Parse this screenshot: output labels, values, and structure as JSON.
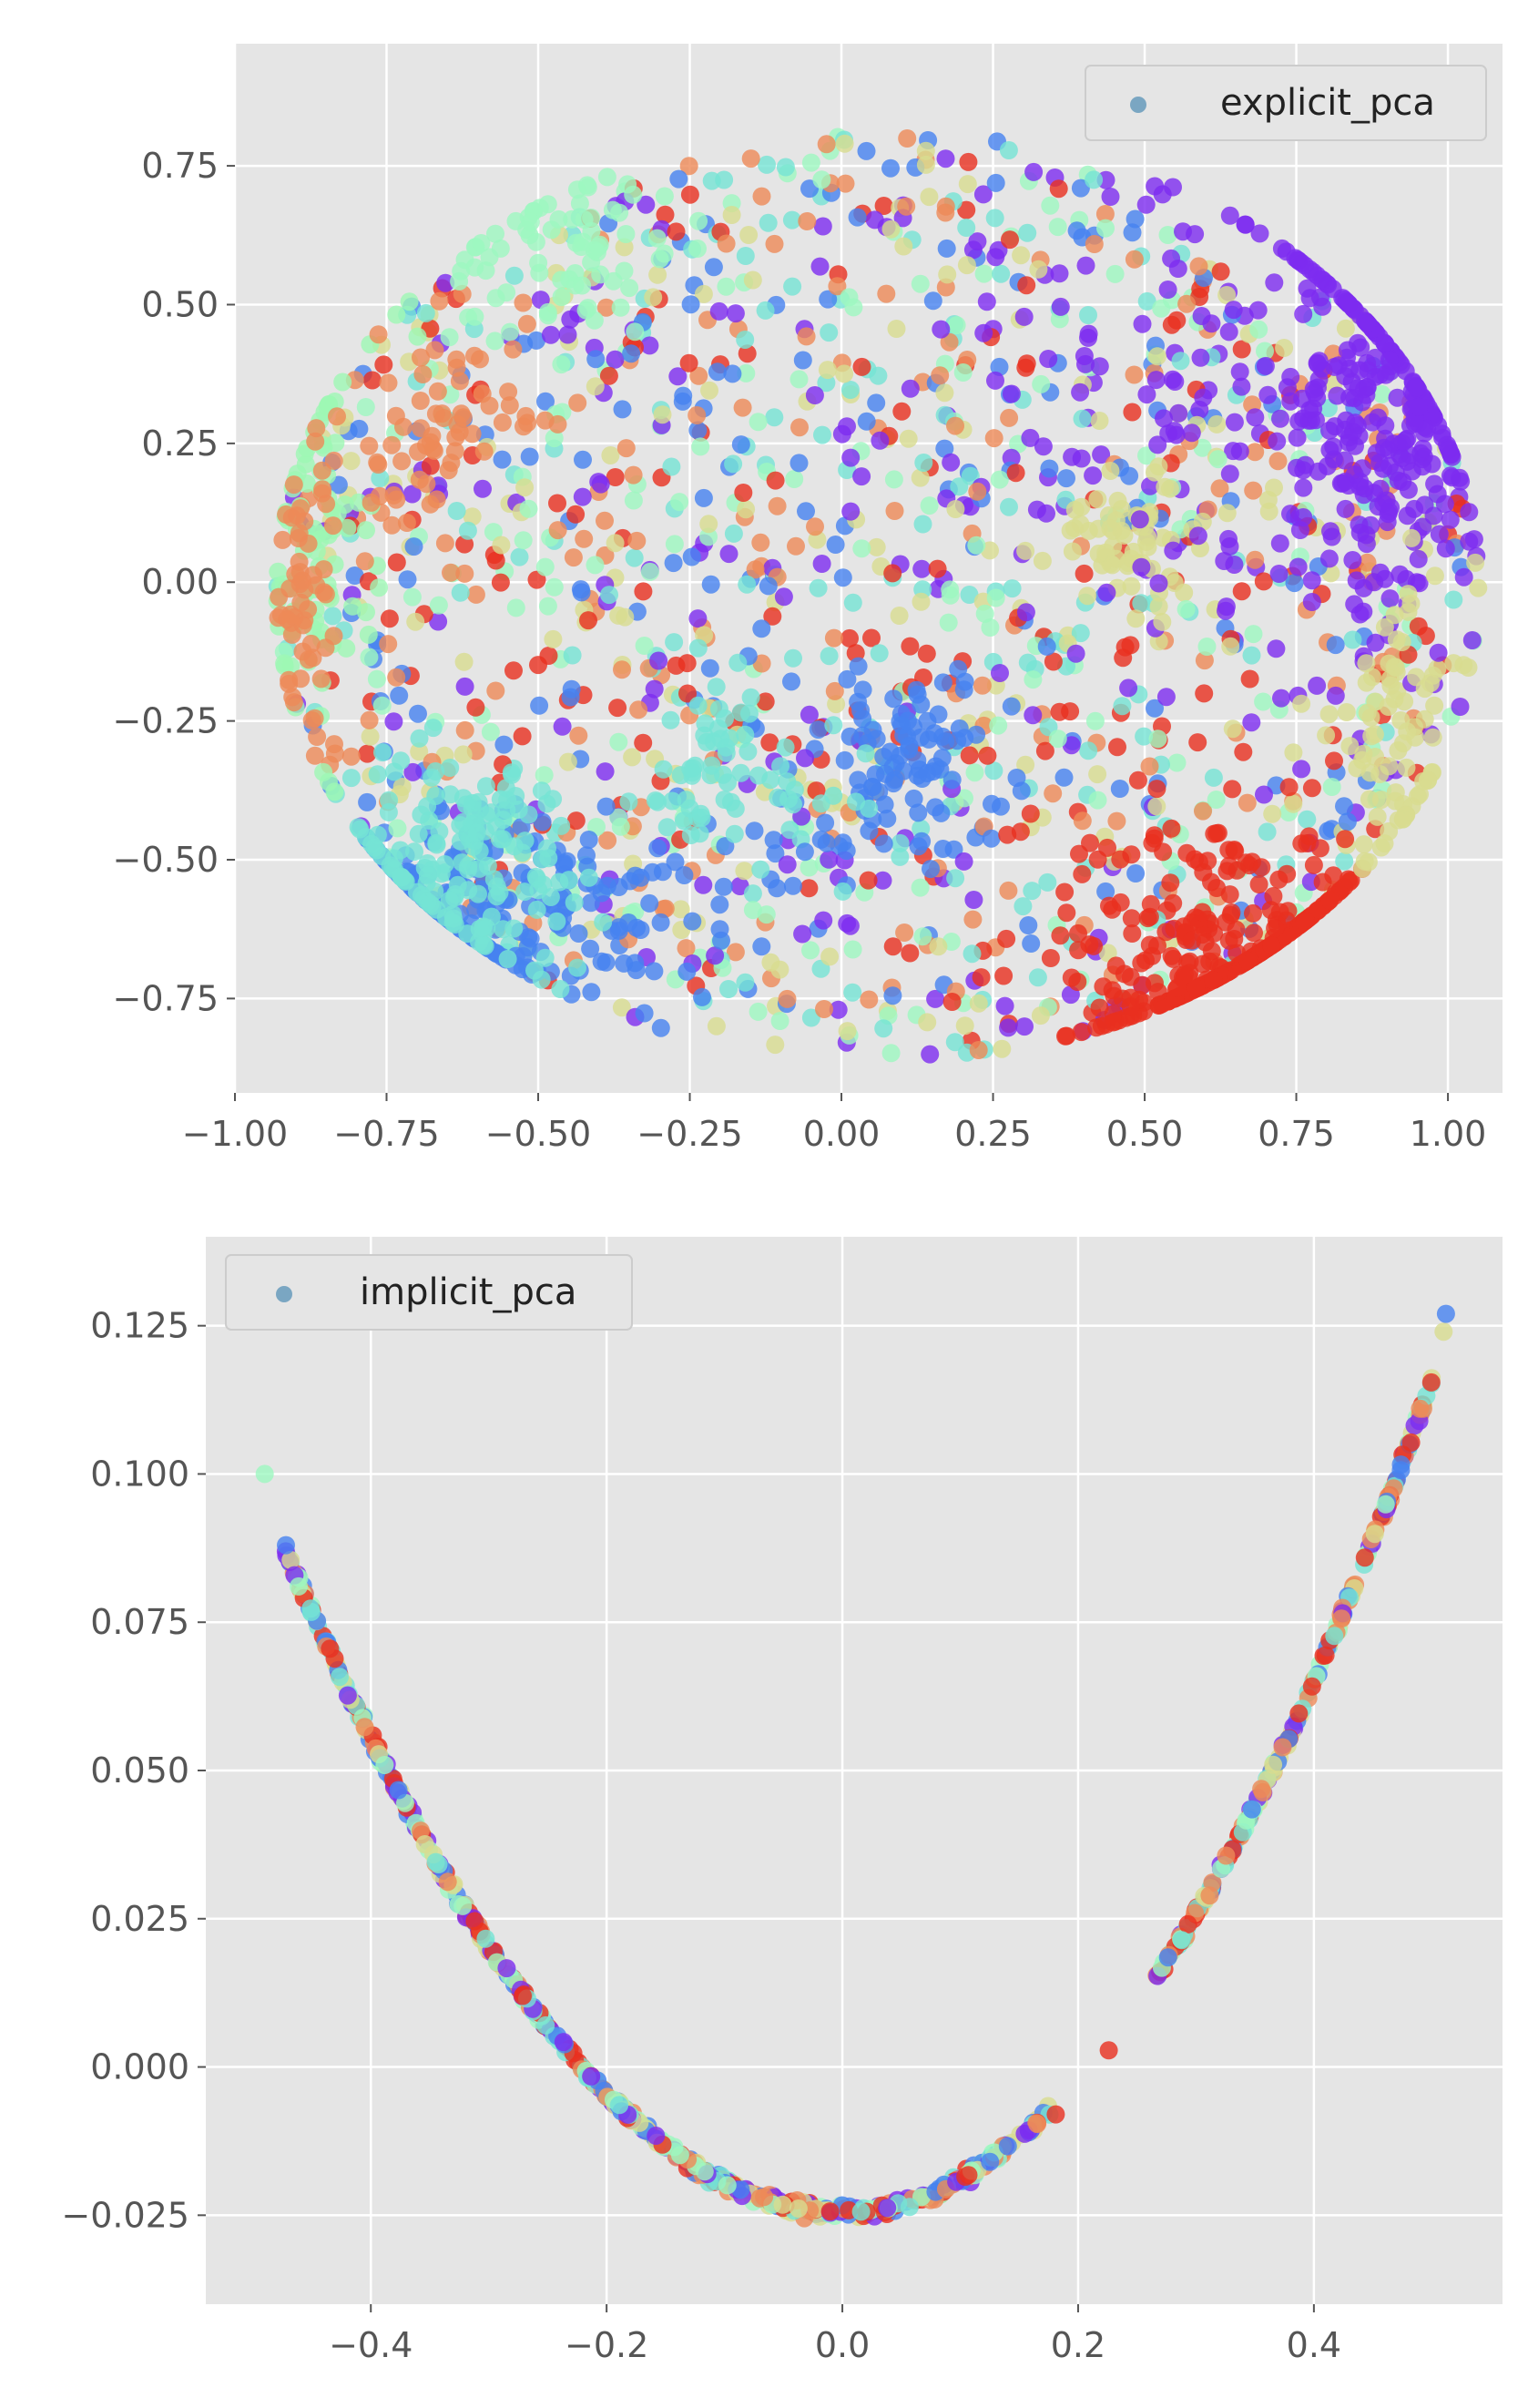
{
  "figure": {
    "background": "#ffffff",
    "axes_background": "#e5e5e5",
    "grid_color": "#ffffff",
    "tick_color": "#555555"
  },
  "chart_data": [
    {
      "type": "scatter",
      "series": [
        {
          "name": "explicit_pca",
          "legend_marker_color": "#7aa6c2"
        }
      ],
      "xlim": [
        -1.0,
        1.09
      ],
      "ylim": [
        -0.92,
        0.97
      ],
      "xticks": [
        -1.0,
        -0.75,
        -0.5,
        -0.25,
        0.0,
        0.25,
        0.5,
        0.75,
        1.0
      ],
      "xtick_labels": [
        "−1.00",
        "−0.75",
        "−0.50",
        "−0.25",
        "0.00",
        "0.25",
        "0.50",
        "0.75",
        "1.00"
      ],
      "yticks": [
        -0.75,
        -0.5,
        -0.25,
        0.0,
        0.25,
        0.5,
        0.75
      ],
      "ytick_labels": [
        "−0.75",
        "−0.50",
        "−0.25",
        "0.00",
        "0.25",
        "0.50",
        "0.75"
      ],
      "grid": true,
      "legend_position": "upper right",
      "colormap": "rainbow",
      "point_alpha": 0.8,
      "clusters": [
        {
          "x": 0.9,
          "y": 0.28,
          "sx": 0.09,
          "sy": 0.18,
          "color": "#7d2cf0",
          "n": 260
        },
        {
          "x": 0.65,
          "y": -0.68,
          "sx": 0.14,
          "sy": 0.13,
          "color": "#e8301f",
          "n": 300
        },
        {
          "x": -0.55,
          "y": -0.58,
          "sx": 0.18,
          "sy": 0.1,
          "color": "#4682f0",
          "n": 200
        },
        {
          "x": -0.62,
          "y": -0.5,
          "sx": 0.12,
          "sy": 0.1,
          "color": "#76e4d4",
          "n": 150
        },
        {
          "x": -0.45,
          "y": 0.6,
          "sx": 0.1,
          "sy": 0.08,
          "color": "#9ef7c0",
          "n": 70
        },
        {
          "x": -0.88,
          "y": 0.05,
          "sx": 0.05,
          "sy": 0.18,
          "color": "#9ef7b4",
          "n": 90
        },
        {
          "x": -0.88,
          "y": -0.05,
          "sx": 0.04,
          "sy": 0.15,
          "color": "#ee8a58",
          "n": 60
        },
        {
          "x": -0.68,
          "y": 0.27,
          "sx": 0.07,
          "sy": 0.08,
          "color": "#ee8a58",
          "n": 60
        },
        {
          "x": 0.48,
          "y": 0.08,
          "sx": 0.07,
          "sy": 0.06,
          "color": "#d8dc90",
          "n": 60
        },
        {
          "x": 0.1,
          "y": -0.32,
          "sx": 0.09,
          "sy": 0.08,
          "color": "#4682f0",
          "n": 90
        },
        {
          "x": -0.2,
          "y": -0.35,
          "sx": 0.1,
          "sy": 0.08,
          "color": "#76e4d4",
          "n": 60
        },
        {
          "x": 0.93,
          "y": -0.28,
          "sx": 0.06,
          "sy": 0.14,
          "color": "#d8dc90",
          "n": 80
        },
        {
          "x": 0.55,
          "y": 0.35,
          "sx": 0.2,
          "sy": 0.18,
          "color": "#7d2cf0",
          "n": 80
        }
      ],
      "background_points": {
        "n": 1500,
        "colors": [
          "#7d2cf0",
          "#4682f0",
          "#76e4d4",
          "#9ef7c0",
          "#d8dc90",
          "#ee8a58",
          "#e8301f"
        ],
        "extent": "ellipse"
      }
    },
    {
      "type": "scatter",
      "series": [
        {
          "name": "implicit_pca",
          "legend_marker_color": "#7aa6c2"
        }
      ],
      "xlim": [
        -0.54,
        0.56
      ],
      "ylim": [
        -0.04,
        0.14
      ],
      "xticks": [
        -0.4,
        -0.2,
        0.0,
        0.2,
        0.4
      ],
      "xtick_labels": [
        "−0.4",
        "−0.2",
        "0.0",
        "0.2",
        "0.4"
      ],
      "yticks": [
        -0.025,
        0.0,
        0.025,
        0.05,
        0.075,
        0.1,
        0.125
      ],
      "ytick_labels": [
        "−0.025",
        "0.000",
        "0.025",
        "0.050",
        "0.075",
        "0.100",
        "0.125"
      ],
      "grid": true,
      "legend_position": "upper left",
      "colormap": "rainbow",
      "point_alpha": 0.8,
      "curve": {
        "y_at_x0": -0.0245,
        "left_coefficient": 0.5,
        "right_coefficient": 0.56
      },
      "segments": [
        {
          "x_min": -0.475,
          "x_max": -0.2,
          "n": 230
        },
        {
          "x_min": -0.2,
          "x_max": 0.18,
          "n": 300
        },
        {
          "x_min": 0.265,
          "x_max": 0.5,
          "n": 200
        }
      ],
      "outliers": [
        {
          "x": -0.49,
          "y": 0.1,
          "color": "#9ef7c0"
        },
        {
          "x": -0.472,
          "y": 0.088,
          "color": "#4682f0"
        },
        {
          "x": 0.226,
          "y": 0.0028,
          "color": "#e8301f"
        },
        {
          "x": 0.181,
          "y": -0.008,
          "color": "#e8301f"
        },
        {
          "x": 0.49,
          "y": 0.111,
          "color": "#ee8a58"
        },
        {
          "x": 0.51,
          "y": 0.124,
          "color": "#d8dc90"
        },
        {
          "x": 0.512,
          "y": 0.127,
          "color": "#4682f0"
        }
      ]
    }
  ]
}
